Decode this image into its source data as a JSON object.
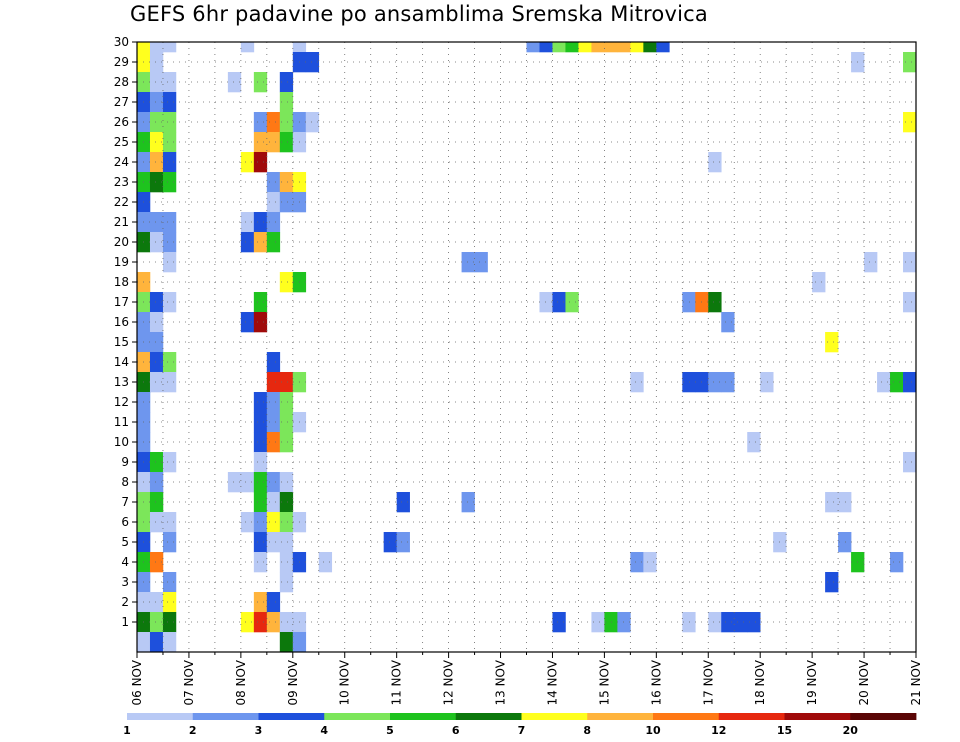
{
  "chart_data": {
    "type": "heatmap",
    "title": "GEFS 6hr padavine po ansamblima Sremska Mitrovica",
    "xlabel": "",
    "ylabel": "",
    "x_tick_labels": [
      "06 NOV",
      "07 NOV",
      "08 NOV",
      "09 NOV",
      "10 NOV",
      "11 NOV",
      "12 NOV",
      "13 NOV",
      "14 NOV",
      "15 NOV",
      "16 NOV",
      "17 NOV",
      "18 NOV",
      "19 NOV",
      "20 NOV",
      "21 NOV"
    ],
    "y_tick_labels": [
      "1",
      "2",
      "3",
      "4",
      "5",
      "6",
      "7",
      "8",
      "9",
      "10",
      "11",
      "12",
      "13",
      "14",
      "15",
      "16",
      "17",
      "18",
      "19",
      "20",
      "21",
      "22",
      "23",
      "24",
      "25",
      "26",
      "27",
      "28",
      "29",
      "30"
    ],
    "grid": true,
    "x_units": "6-hour steps from 06 NOV 00Z (4 steps per day)",
    "y_units": "ensemble member",
    "colorbar": {
      "tick_labels": [
        "1",
        "2",
        "3",
        "4",
        "5",
        "6",
        "7",
        "8",
        "10",
        "12",
        "15",
        "20"
      ],
      "colors": [
        "#b8c9f5",
        "#6e96ee",
        "#1e50dc",
        "#7ce65a",
        "#1ec31e",
        "#0c780c",
        "#ffff1e",
        "#ffb43c",
        "#ff7814",
        "#e6280f",
        "#a00a0a",
        "#5a0505"
      ]
    },
    "cells": [
      [
        0,
        30,
        6
      ],
      [
        1,
        30,
        0
      ],
      [
        2,
        30,
        0
      ],
      [
        8,
        30,
        0
      ],
      [
        12,
        30,
        0
      ],
      [
        30,
        30,
        1
      ],
      [
        31,
        30,
        2
      ],
      [
        32,
        30,
        3
      ],
      [
        33,
        30,
        4
      ],
      [
        34,
        30,
        6
      ],
      [
        35,
        30,
        7
      ],
      [
        36,
        30,
        7
      ],
      [
        37,
        30,
        7
      ],
      [
        38,
        30,
        6
      ],
      [
        39,
        30,
        5
      ],
      [
        40,
        30,
        2
      ],
      [
        0,
        29,
        6
      ],
      [
        1,
        29,
        0
      ],
      [
        12,
        29,
        2
      ],
      [
        13,
        29,
        2
      ],
      [
        55,
        29,
        0
      ],
      [
        59,
        29,
        3
      ],
      [
        0,
        28,
        3
      ],
      [
        1,
        28,
        0
      ],
      [
        2,
        28,
        0
      ],
      [
        7,
        28,
        0
      ],
      [
        9,
        28,
        3
      ],
      [
        11,
        28,
        2
      ],
      [
        0,
        27,
        2
      ],
      [
        1,
        27,
        1
      ],
      [
        2,
        27,
        2
      ],
      [
        11,
        27,
        3
      ],
      [
        0,
        26,
        1
      ],
      [
        1,
        26,
        3
      ],
      [
        2,
        26,
        3
      ],
      [
        9,
        26,
        1
      ],
      [
        10,
        26,
        8
      ],
      [
        11,
        26,
        3
      ],
      [
        12,
        26,
        1
      ],
      [
        13,
        26,
        0
      ],
      [
        59,
        26,
        6
      ],
      [
        0,
        25,
        4
      ],
      [
        1,
        25,
        6
      ],
      [
        2,
        25,
        3
      ],
      [
        9,
        25,
        7
      ],
      [
        10,
        25,
        7
      ],
      [
        11,
        25,
        4
      ],
      [
        12,
        25,
        0
      ],
      [
        0,
        24,
        1
      ],
      [
        1,
        24,
        7
      ],
      [
        2,
        24,
        2
      ],
      [
        8,
        24,
        6
      ],
      [
        9,
        24,
        10
      ],
      [
        44,
        24,
        0
      ],
      [
        0,
        23,
        4
      ],
      [
        1,
        23,
        5
      ],
      [
        2,
        23,
        4
      ],
      [
        10,
        23,
        1
      ],
      [
        11,
        23,
        7
      ],
      [
        12,
        23,
        6
      ],
      [
        0,
        22,
        2
      ],
      [
        10,
        22,
        0
      ],
      [
        11,
        22,
        1
      ],
      [
        12,
        22,
        1
      ],
      [
        0,
        21,
        1
      ],
      [
        1,
        21,
        1
      ],
      [
        2,
        21,
        1
      ],
      [
        8,
        21,
        0
      ],
      [
        9,
        21,
        2
      ],
      [
        10,
        21,
        1
      ],
      [
        0,
        20,
        5
      ],
      [
        1,
        20,
        0
      ],
      [
        2,
        20,
        1
      ],
      [
        8,
        20,
        2
      ],
      [
        9,
        20,
        7
      ],
      [
        10,
        20,
        4
      ],
      [
        2,
        19,
        0
      ],
      [
        25,
        19,
        1
      ],
      [
        26,
        19,
        1
      ],
      [
        56,
        19,
        0
      ],
      [
        59,
        19,
        0
      ],
      [
        0,
        18,
        7
      ],
      [
        11,
        18,
        6
      ],
      [
        12,
        18,
        4
      ],
      [
        52,
        18,
        0
      ],
      [
        0,
        17,
        3
      ],
      [
        1,
        17,
        2
      ],
      [
        2,
        17,
        0
      ],
      [
        9,
        17,
        4
      ],
      [
        31,
        17,
        0
      ],
      [
        32,
        17,
        2
      ],
      [
        33,
        17,
        3
      ],
      [
        42,
        17,
        1
      ],
      [
        43,
        17,
        8
      ],
      [
        44,
        17,
        5
      ],
      [
        59,
        17,
        0
      ],
      [
        0,
        16,
        1
      ],
      [
        1,
        16,
        0
      ],
      [
        8,
        16,
        2
      ],
      [
        9,
        16,
        10
      ],
      [
        45,
        16,
        1
      ],
      [
        0,
        15,
        1
      ],
      [
        1,
        15,
        1
      ],
      [
        53,
        15,
        6
      ],
      [
        0,
        14,
        7
      ],
      [
        1,
        14,
        2
      ],
      [
        2,
        14,
        3
      ],
      [
        10,
        14,
        2
      ],
      [
        0,
        13,
        5
      ],
      [
        1,
        13,
        0
      ],
      [
        2,
        13,
        0
      ],
      [
        10,
        13,
        9
      ],
      [
        11,
        13,
        9
      ],
      [
        12,
        13,
        3
      ],
      [
        38,
        13,
        0
      ],
      [
        42,
        13,
        2
      ],
      [
        43,
        13,
        2
      ],
      [
        44,
        13,
        1
      ],
      [
        45,
        13,
        1
      ],
      [
        48,
        13,
        0
      ],
      [
        57,
        13,
        0
      ],
      [
        58,
        13,
        4
      ],
      [
        59,
        13,
        2
      ],
      [
        0,
        12,
        1
      ],
      [
        9,
        12,
        2
      ],
      [
        10,
        12,
        1
      ],
      [
        11,
        12,
        3
      ],
      [
        0,
        11,
        1
      ],
      [
        9,
        11,
        2
      ],
      [
        10,
        11,
        1
      ],
      [
        11,
        11,
        3
      ],
      [
        12,
        11,
        0
      ],
      [
        0,
        10,
        1
      ],
      [
        9,
        10,
        2
      ],
      [
        10,
        10,
        8
      ],
      [
        11,
        10,
        3
      ],
      [
        47,
        10,
        0
      ],
      [
        0,
        9,
        2
      ],
      [
        1,
        9,
        4
      ],
      [
        2,
        9,
        0
      ],
      [
        9,
        9,
        0
      ],
      [
        59,
        9,
        0
      ],
      [
        0,
        8,
        0
      ],
      [
        1,
        8,
        1
      ],
      [
        7,
        8,
        0
      ],
      [
        8,
        8,
        0
      ],
      [
        9,
        8,
        4
      ],
      [
        10,
        8,
        1
      ],
      [
        11,
        8,
        0
      ],
      [
        0,
        7,
        3
      ],
      [
        1,
        7,
        4
      ],
      [
        9,
        7,
        4
      ],
      [
        10,
        7,
        0
      ],
      [
        11,
        7,
        5
      ],
      [
        20,
        7,
        2
      ],
      [
        25,
        7,
        1
      ],
      [
        53,
        7,
        0
      ],
      [
        54,
        7,
        0
      ],
      [
        0,
        6,
        3
      ],
      [
        1,
        6,
        0
      ],
      [
        2,
        6,
        0
      ],
      [
        8,
        6,
        0
      ],
      [
        9,
        6,
        1
      ],
      [
        10,
        6,
        6
      ],
      [
        11,
        6,
        3
      ],
      [
        12,
        6,
        0
      ],
      [
        0,
        5,
        2
      ],
      [
        2,
        5,
        1
      ],
      [
        9,
        5,
        2
      ],
      [
        10,
        5,
        0
      ],
      [
        11,
        5,
        0
      ],
      [
        19,
        5,
        2
      ],
      [
        20,
        5,
        1
      ],
      [
        49,
        5,
        0
      ],
      [
        54,
        5,
        1
      ],
      [
        0,
        4,
        4
      ],
      [
        1,
        4,
        8
      ],
      [
        9,
        4,
        0
      ],
      [
        11,
        4,
        0
      ],
      [
        12,
        4,
        2
      ],
      [
        14,
        4,
        0
      ],
      [
        38,
        4,
        1
      ],
      [
        39,
        4,
        0
      ],
      [
        55,
        4,
        4
      ],
      [
        58,
        4,
        1
      ],
      [
        0,
        3,
        1
      ],
      [
        2,
        3,
        1
      ],
      [
        11,
        3,
        0
      ],
      [
        53,
        3,
        2
      ],
      [
        0,
        2,
        0
      ],
      [
        1,
        2,
        0
      ],
      [
        2,
        2,
        6
      ],
      [
        9,
        2,
        7
      ],
      [
        10,
        2,
        2
      ],
      [
        0,
        1,
        5
      ],
      [
        1,
        1,
        3
      ],
      [
        2,
        1,
        5
      ],
      [
        8,
        1,
        6
      ],
      [
        9,
        1,
        9
      ],
      [
        10,
        1,
        7
      ],
      [
        11,
        1,
        0
      ],
      [
        12,
        1,
        0
      ],
      [
        32,
        1,
        2
      ],
      [
        35,
        1,
        0
      ],
      [
        36,
        1,
        4
      ],
      [
        37,
        1,
        1
      ],
      [
        42,
        1,
        0
      ],
      [
        44,
        1,
        0
      ],
      [
        45,
        1,
        2
      ],
      [
        46,
        1,
        2
      ],
      [
        47,
        1,
        2
      ],
      [
        0,
        0,
        0
      ],
      [
        1,
        0,
        2
      ],
      [
        2,
        0,
        0
      ],
      [
        11,
        0,
        5
      ],
      [
        12,
        0,
        1
      ]
    ]
  }
}
